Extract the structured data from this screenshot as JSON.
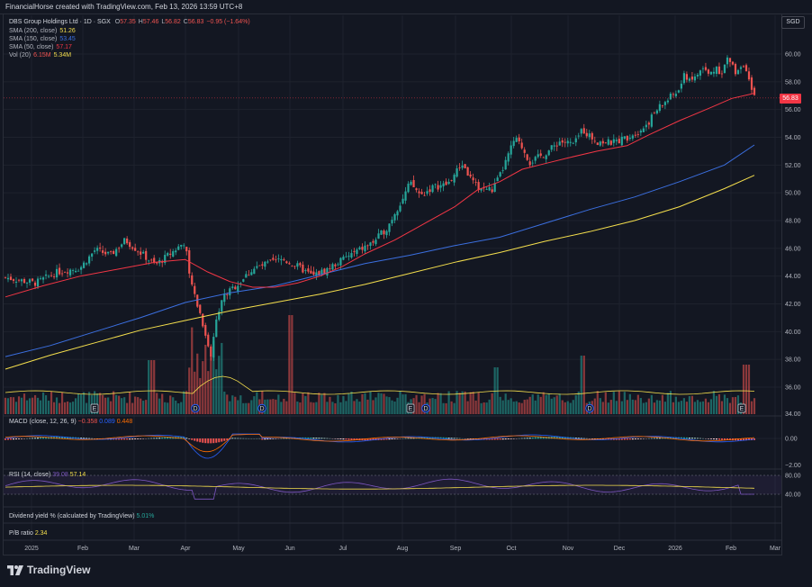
{
  "header": {
    "title": "FinancialHorse created with TradingView.com, Feb 13, 2026 13:59 UTC+8"
  },
  "currency_badge": "SGD",
  "last_price_tag": "56.83",
  "legend": {
    "symbol": "DBS Group Holdings Ltd · 1D · SGX",
    "ohlc": [
      {
        "k": "O",
        "v": "57.35"
      },
      {
        "k": "H",
        "v": "57.46"
      },
      {
        "k": "L",
        "v": "56.82"
      },
      {
        "k": "C",
        "v": "56.83"
      },
      {
        "k": "",
        "v": "−0.95 (−1.64%)"
      }
    ],
    "sma200": {
      "label": "SMA (200, close)",
      "value": "51.26",
      "color": "#f5df4d"
    },
    "sma150": {
      "label": "SMA (150, close)",
      "value": "53.45",
      "color": "#3b6fe0"
    },
    "sma50": {
      "label": "SMA (50, close)",
      "value": "57.17",
      "color": "#f23645"
    },
    "vol": {
      "label": "Vol (20)",
      "value1": "6.15M",
      "value2": "5.34M"
    }
  },
  "macd_legend": {
    "label": "MACD (close, 12, 26, 9)",
    "v1": "−0.358",
    "v2": "0.089",
    "v3": "0.448"
  },
  "rsi_legend": {
    "label": "RSI (14, close)",
    "v1": "39.08",
    "v2": "57.14"
  },
  "dividend_legend": {
    "label": "Dividend yield % (calculated by TradingView)",
    "value": "5.01%"
  },
  "pb_legend": {
    "label": "P/B ratio",
    "value": "2.34"
  },
  "macd_axis": [
    "0.00",
    "−2.00"
  ],
  "rsi_axis": [
    "80.00",
    "40.00"
  ],
  "vol_axis_last": "34.00",
  "brand": "TradingView",
  "colors": {
    "up": "#26a69a",
    "down": "#ef5350",
    "sma50": "#f23645",
    "sma150": "#3b6fe0",
    "sma200": "#f5df4d",
    "macd": "#2962ff",
    "signal": "#ff6d00",
    "rsi": "#7e57c2",
    "rsi_ma": "#f5df4d"
  },
  "chart_data": {
    "type": "candlestick",
    "price_axis": {
      "ticks": [
        "60.00",
        "58.00",
        "56.00",
        "54.00",
        "52.00",
        "50.00",
        "48.00",
        "46.00",
        "44.00",
        "42.00",
        "40.00",
        "38.00",
        "36.00"
      ],
      "range": [
        34,
        61
      ]
    },
    "time_axis": [
      "2025",
      "Feb",
      "Mar",
      "Apr",
      "May",
      "Jun",
      "Jul",
      "Aug",
      "Sep",
      "Oct",
      "Nov",
      "Dec",
      "2026",
      "Feb",
      "Mar"
    ],
    "close_path": [
      [
        0,
        43.9
      ],
      [
        0.04,
        43.5
      ],
      [
        0.07,
        44.3
      ],
      [
        0.1,
        44.6
      ],
      [
        0.12,
        45.9
      ],
      [
        0.14,
        45.5
      ],
      [
        0.16,
        46.6
      ],
      [
        0.18,
        45.7
      ],
      [
        0.2,
        44.8
      ],
      [
        0.22,
        45.6
      ],
      [
        0.24,
        46.5
      ],
      [
        0.245,
        44.1
      ],
      [
        0.26,
        41.3
      ],
      [
        0.27,
        39.2
      ],
      [
        0.275,
        38.0
      ],
      [
        0.28,
        40.8
      ],
      [
        0.29,
        42.5
      ],
      [
        0.31,
        43.4
      ],
      [
        0.33,
        44.5
      ],
      [
        0.35,
        44.9
      ],
      [
        0.37,
        45.2
      ],
      [
        0.39,
        44.7
      ],
      [
        0.41,
        44.0
      ],
      [
        0.43,
        44.5
      ],
      [
        0.45,
        45.2
      ],
      [
        0.47,
        45.8
      ],
      [
        0.49,
        46.4
      ],
      [
        0.51,
        47.5
      ],
      [
        0.52,
        48.6
      ],
      [
        0.53,
        49.5
      ],
      [
        0.54,
        50.7
      ],
      [
        0.555,
        49.8
      ],
      [
        0.57,
        50.4
      ],
      [
        0.59,
        50.6
      ],
      [
        0.61,
        52.1
      ],
      [
        0.62,
        51.1
      ],
      [
        0.63,
        50.4
      ],
      [
        0.65,
        50.2
      ],
      [
        0.66,
        51.2
      ],
      [
        0.67,
        52.5
      ],
      [
        0.68,
        53.9
      ],
      [
        0.69,
        53.3
      ],
      [
        0.7,
        52.2
      ],
      [
        0.72,
        52.8
      ],
      [
        0.74,
        53.7
      ],
      [
        0.76,
        53.5
      ],
      [
        0.77,
        54.6
      ],
      [
        0.78,
        54.1
      ],
      [
        0.79,
        53.7
      ],
      [
        0.81,
        53.6
      ],
      [
        0.83,
        54.0
      ],
      [
        0.85,
        54.6
      ],
      [
        0.86,
        55.2
      ],
      [
        0.87,
        56.0
      ],
      [
        0.88,
        56.5
      ],
      [
        0.89,
        57.0
      ],
      [
        0.9,
        57.4
      ],
      [
        0.905,
        58.4
      ],
      [
        0.92,
        58.2
      ],
      [
        0.93,
        59.0
      ],
      [
        0.94,
        58.5
      ],
      [
        0.95,
        59.1
      ],
      [
        0.955,
        58.6
      ],
      [
        0.965,
        59.7
      ],
      [
        0.975,
        58.7
      ],
      [
        0.985,
        59.4
      ],
      [
        0.993,
        57.9
      ],
      [
        1.0,
        56.83
      ]
    ],
    "sma50_path": [
      [
        0,
        42.5
      ],
      [
        0.05,
        43.3
      ],
      [
        0.1,
        44.0
      ],
      [
        0.15,
        44.5
      ],
      [
        0.2,
        45.0
      ],
      [
        0.24,
        45.2
      ],
      [
        0.27,
        44.3
      ],
      [
        0.3,
        43.6
      ],
      [
        0.33,
        43.2
      ],
      [
        0.36,
        43.2
      ],
      [
        0.39,
        43.5
      ],
      [
        0.42,
        44.0
      ],
      [
        0.45,
        44.7
      ],
      [
        0.48,
        45.6
      ],
      [
        0.52,
        46.6
      ],
      [
        0.56,
        47.8
      ],
      [
        0.6,
        49.0
      ],
      [
        0.63,
        50.2
      ],
      [
        0.66,
        50.8
      ],
      [
        0.69,
        51.7
      ],
      [
        0.72,
        52.1
      ],
      [
        0.75,
        52.5
      ],
      [
        0.79,
        53.0
      ],
      [
        0.83,
        53.4
      ],
      [
        0.86,
        54.2
      ],
      [
        0.9,
        55.2
      ],
      [
        0.94,
        56.1
      ],
      [
        0.97,
        56.8
      ],
      [
        1.0,
        57.17
      ]
    ],
    "sma150_path": [
      [
        0,
        38.2
      ],
      [
        0.06,
        39.0
      ],
      [
        0.12,
        40.0
      ],
      [
        0.18,
        41.0
      ],
      [
        0.24,
        42.1
      ],
      [
        0.3,
        42.8
      ],
      [
        0.36,
        43.3
      ],
      [
        0.42,
        44.1
      ],
      [
        0.48,
        44.9
      ],
      [
        0.54,
        45.5
      ],
      [
        0.6,
        46.2
      ],
      [
        0.66,
        46.8
      ],
      [
        0.72,
        47.8
      ],
      [
        0.78,
        48.8
      ],
      [
        0.84,
        49.7
      ],
      [
        0.9,
        50.8
      ],
      [
        0.96,
        52.0
      ],
      [
        1.0,
        53.45
      ]
    ],
    "sma200_path": [
      [
        0,
        37.3
      ],
      [
        0.06,
        38.3
      ],
      [
        0.12,
        39.2
      ],
      [
        0.18,
        40.1
      ],
      [
        0.24,
        40.8
      ],
      [
        0.3,
        41.5
      ],
      [
        0.36,
        42.1
      ],
      [
        0.42,
        42.7
      ],
      [
        0.48,
        43.4
      ],
      [
        0.54,
        44.2
      ],
      [
        0.6,
        45.0
      ],
      [
        0.66,
        45.7
      ],
      [
        0.72,
        46.5
      ],
      [
        0.78,
        47.2
      ],
      [
        0.84,
        48.0
      ],
      [
        0.9,
        49.0
      ],
      [
        0.96,
        50.3
      ],
      [
        1.0,
        51.26
      ]
    ]
  }
}
